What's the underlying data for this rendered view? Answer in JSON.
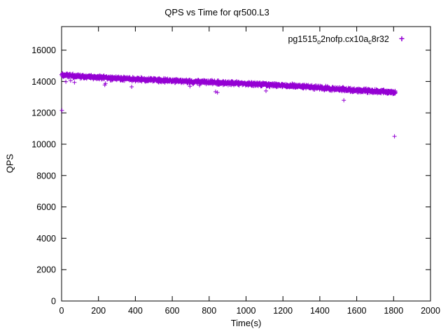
{
  "chart_data": {
    "type": "scatter",
    "title": "QPS vs Time for qr500.L3",
    "xlabel": "Time(s)",
    "ylabel": "QPS",
    "xlim": [
      0,
      2000
    ],
    "ylim": [
      0,
      17500
    ],
    "xticks": [
      0,
      200,
      400,
      600,
      800,
      1000,
      1200,
      1400,
      1600,
      1800,
      2000
    ],
    "yticks": [
      0,
      2000,
      4000,
      6000,
      8000,
      10000,
      12000,
      14000,
      16000
    ],
    "grid": false,
    "legend_position": "top-right",
    "marker": "plus",
    "color": "#9400D3",
    "series": [
      {
        "name": "pg1515_o2nofp.cx10a_c8r32",
        "name_segments": [
          {
            "t": "pg1515"
          },
          {
            "t": "o",
            "sub": true
          },
          {
            "t": "2nofp.cx10a"
          },
          {
            "t": "c",
            "sub": true
          },
          {
            "t": "8r32"
          }
        ],
        "x_start": 0,
        "x_end": 1810,
        "x_step": 1,
        "noise_amplitude": 150,
        "trend": [
          [
            0,
            14400
          ],
          [
            100,
            14320
          ],
          [
            200,
            14250
          ],
          [
            300,
            14200
          ],
          [
            400,
            14150
          ],
          [
            500,
            14100
          ],
          [
            600,
            14050
          ],
          [
            700,
            14000
          ],
          [
            800,
            13950
          ],
          [
            900,
            13900
          ],
          [
            1000,
            13850
          ],
          [
            1100,
            13800
          ],
          [
            1200,
            13750
          ],
          [
            1300,
            13680
          ],
          [
            1400,
            13600
          ],
          [
            1500,
            13520
          ],
          [
            1600,
            13430
          ],
          [
            1700,
            13380
          ],
          [
            1800,
            13300
          ]
        ],
        "outliers": [
          [
            2,
            12150
          ],
          [
            835,
            13350
          ],
          [
            845,
            13300
          ],
          [
            1530,
            12800
          ],
          [
            1805,
            10500
          ]
        ]
      }
    ]
  }
}
